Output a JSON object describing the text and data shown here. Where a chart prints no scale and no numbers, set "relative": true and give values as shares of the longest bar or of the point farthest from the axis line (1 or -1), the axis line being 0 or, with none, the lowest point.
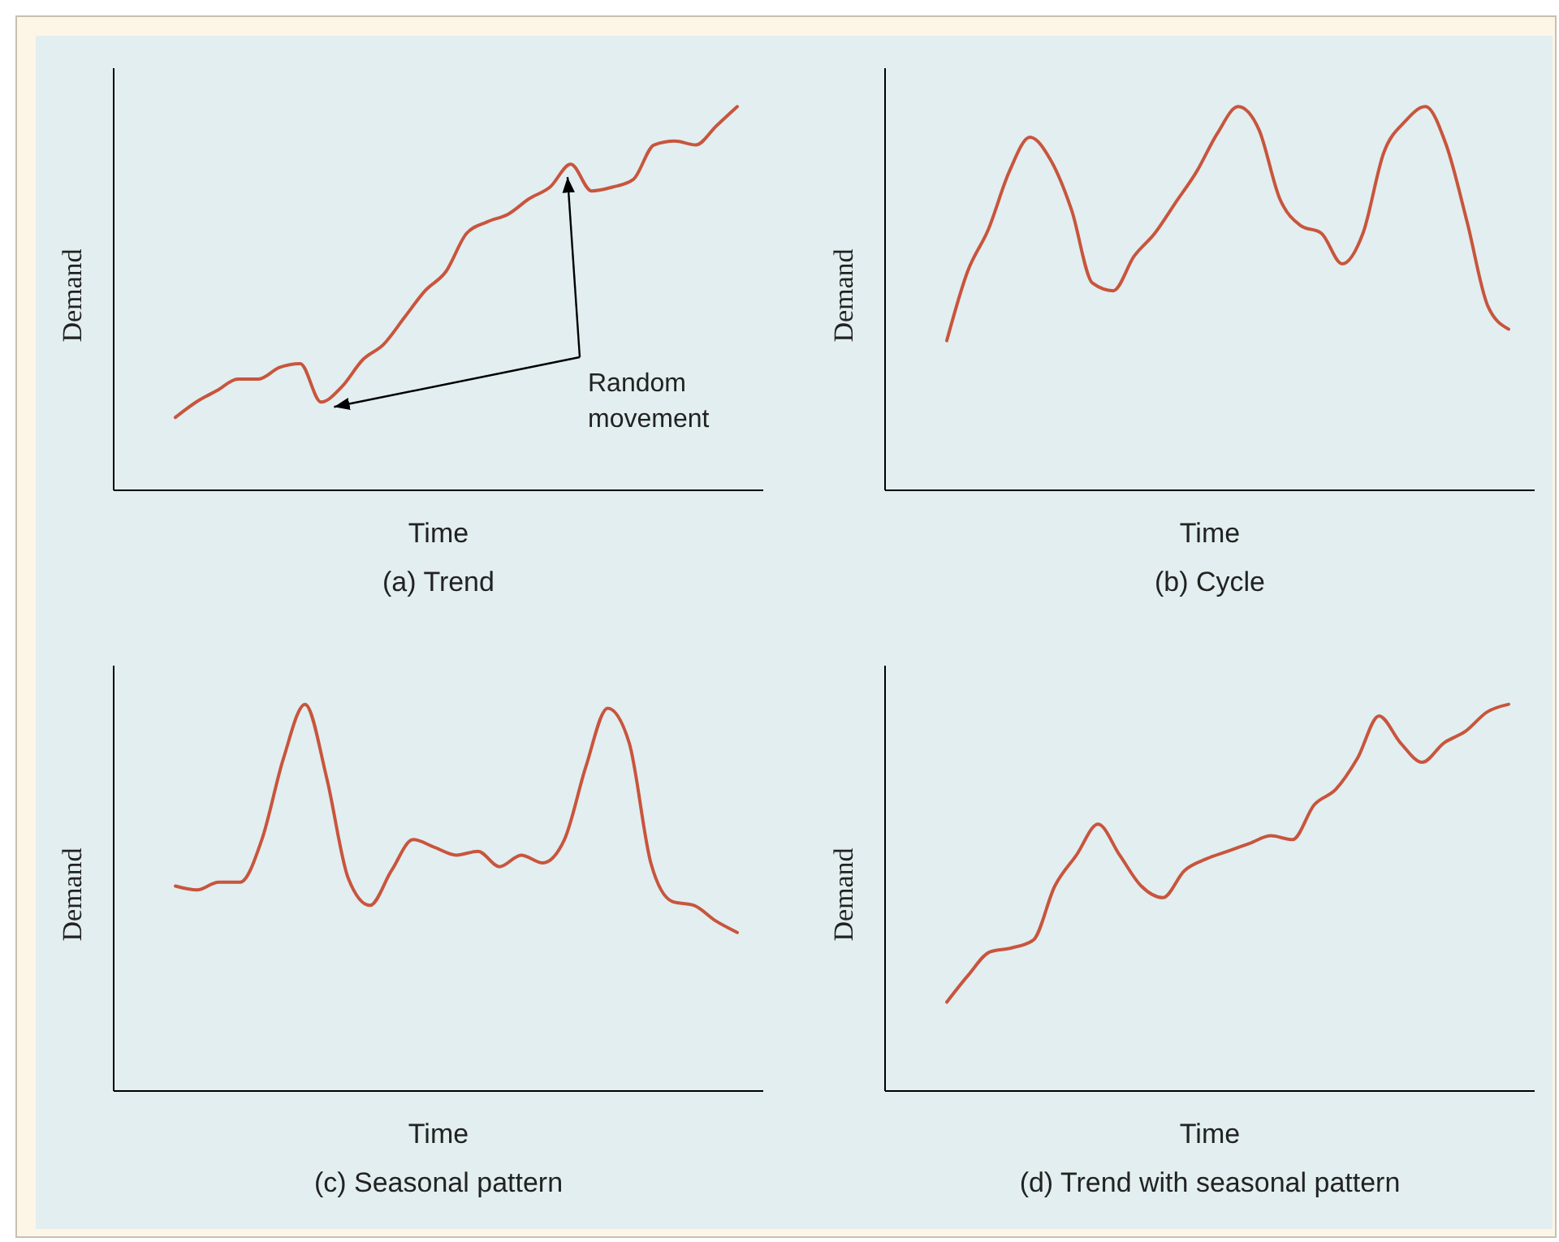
{
  "chart_data": [
    {
      "type": "line",
      "title": "(a) Trend",
      "xlabel": "Time",
      "ylabel": "Demand",
      "relative": true,
      "tick_labels": false,
      "annotations": [
        "Random movement"
      ],
      "categories": [
        null,
        null,
        null,
        null,
        null,
        null,
        null,
        null,
        null,
        null,
        null,
        null,
        null,
        null,
        null,
        null,
        null,
        null,
        null,
        null,
        null,
        null,
        null,
        null,
        null,
        null,
        null,
        null
      ],
      "series": [
        {
          "color": "#c8553d",
          "values": [
            0.19,
            0.23,
            0.26,
            0.29,
            0.29,
            0.32,
            0.33,
            0.23,
            0.27,
            0.34,
            0.38,
            0.45,
            0.52,
            0.57,
            0.67,
            0.7,
            0.72,
            0.76,
            0.79,
            0.85,
            0.78,
            0.79,
            0.81,
            0.9,
            0.91,
            0.9,
            0.95,
            1
          ]
        }
      ]
    },
    {
      "type": "line",
      "title": "(b) Cycle",
      "xlabel": "Time",
      "ylabel": "Demand",
      "relative": true,
      "tick_labels": false,
      "categories": [
        null,
        null,
        null,
        null,
        null,
        null,
        null,
        null,
        null,
        null,
        null,
        null,
        null,
        null,
        null,
        null,
        null,
        null,
        null,
        null,
        null,
        null,
        null,
        null,
        null,
        null,
        null,
        null
      ],
      "series": [
        {
          "color": "#c8553d",
          "values": [
            0.39,
            0.57,
            0.68,
            0.83,
            0.92,
            0.86,
            0.73,
            0.54,
            0.52,
            0.61,
            0.67,
            0.75,
            0.83,
            0.93,
            1,
            0.94,
            0.76,
            0.69,
            0.67,
            0.59,
            0.67,
            0.88,
            0.96,
            1,
            0.9,
            0.7,
            0.48,
            0.42
          ]
        }
      ]
    },
    {
      "type": "line",
      "title": "(c) Seasonal pattern",
      "xlabel": "Time",
      "ylabel": "Demand",
      "relative": true,
      "tick_labels": false,
      "categories": [
        null,
        null,
        null,
        null,
        null,
        null,
        null,
        null,
        null,
        null,
        null,
        null,
        null,
        null,
        null,
        null,
        null,
        null,
        null,
        null,
        null,
        null,
        null,
        null,
        null,
        null,
        null
      ],
      "series": [
        {
          "color": "#c8553d",
          "values": [
            0.53,
            0.52,
            0.54,
            0.54,
            0.65,
            0.86,
            1,
            0.81,
            0.55,
            0.48,
            0.57,
            0.65,
            0.63,
            0.61,
            0.62,
            0.58,
            0.61,
            0.59,
            0.65,
            0.84,
            0.99,
            0.9,
            0.59,
            0.49,
            0.48,
            0.44,
            0.41
          ]
        }
      ]
    },
    {
      "type": "line",
      "title": "(d) Trend with seasonal pattern",
      "xlabel": "Time",
      "ylabel": "Demand",
      "relative": true,
      "tick_labels": false,
      "categories": [
        null,
        null,
        null,
        null,
        null,
        null,
        null,
        null,
        null,
        null,
        null,
        null,
        null,
        null,
        null,
        null,
        null,
        null,
        null,
        null,
        null,
        null,
        null,
        null,
        null,
        null,
        null
      ],
      "series": [
        {
          "color": "#c8553d",
          "values": [
            0.23,
            0.3,
            0.36,
            0.37,
            0.39,
            0.53,
            0.61,
            0.69,
            0.61,
            0.53,
            0.5,
            0.57,
            0.6,
            0.62,
            0.64,
            0.66,
            0.65,
            0.74,
            0.78,
            0.86,
            0.97,
            0.9,
            0.85,
            0.9,
            0.93,
            0.98,
            1
          ]
        }
      ]
    }
  ]
}
